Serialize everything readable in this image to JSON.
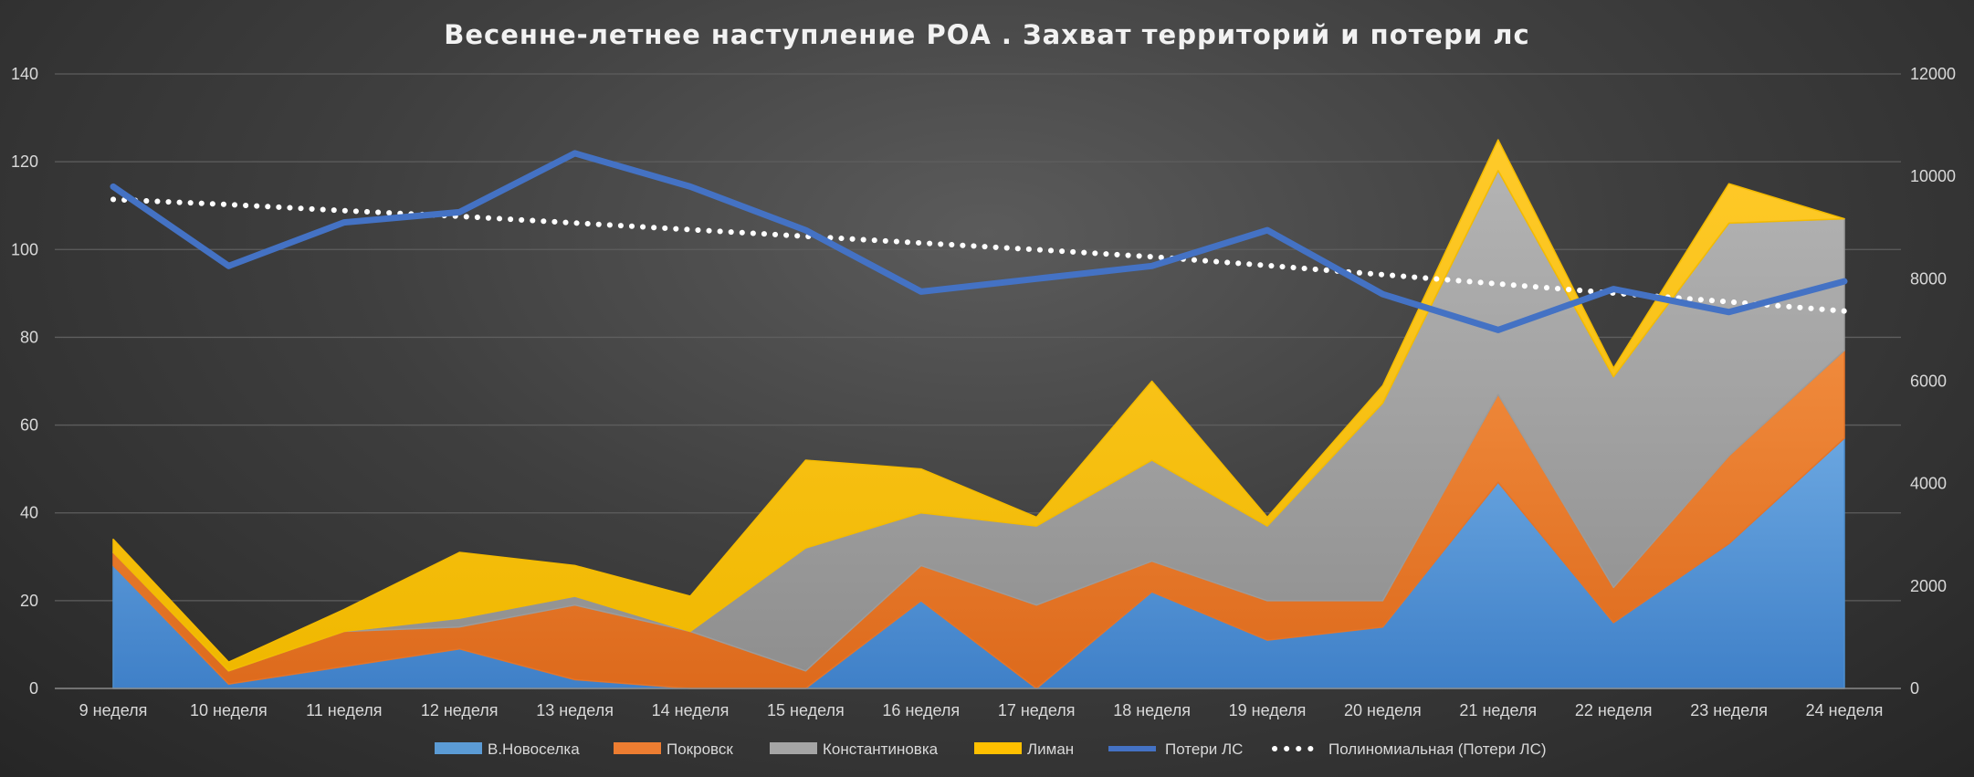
{
  "chart_data": {
    "type": "area",
    "title": "Весенне-летнее наступление РОА . Захват территорий и потери лс",
    "categories": [
      "9 неделя",
      "10 неделя",
      "11 неделя",
      "12 неделя",
      "13 неделя",
      "14 неделя",
      "15 неделя",
      "16 неделя",
      "17 неделя",
      "18 неделя",
      "19 неделя",
      "20 неделя",
      "21 неделя",
      "22 неделя",
      "23 неделя",
      "24 неделя"
    ],
    "y_left": {
      "min": 0,
      "max": 140,
      "ticks": [
        "0",
        "20",
        "40",
        "60",
        "80",
        "100",
        "120",
        "140"
      ]
    },
    "y_right": {
      "min": 0,
      "max": 12000,
      "ticks": [
        "0",
        "2000",
        "4000",
        "6000",
        "8000",
        "10000",
        "12000"
      ]
    },
    "grid": true,
    "legend_position": "bottom",
    "stacked_series": [
      {
        "name": "В.Новоселка",
        "color": "#5b9bd5",
        "values": [
          28,
          1,
          5,
          9,
          2,
          0,
          0,
          20,
          0,
          22,
          11,
          14,
          47,
          15,
          33,
          57
        ]
      },
      {
        "name": "Покровск",
        "color": "#ed7d31",
        "values": [
          3,
          3,
          8,
          5,
          17,
          13,
          4,
          8,
          19,
          7,
          9,
          6,
          20,
          8,
          20,
          20
        ]
      },
      {
        "name": "Константиновка",
        "color": "#a5a5a5",
        "values": [
          0,
          0,
          0,
          2,
          2,
          0,
          28,
          12,
          18,
          23,
          17,
          45,
          51,
          48,
          53,
          30
        ]
      },
      {
        "name": "Лиман",
        "color": "#ffc000",
        "values": [
          3,
          2,
          5,
          15,
          7,
          8,
          20,
          10,
          2,
          18,
          2,
          4,
          7,
          2,
          9,
          0
        ]
      }
    ],
    "line_series": [
      {
        "name": "Потери ЛС",
        "color": "#4472c4",
        "axis": "right",
        "values": [
          9800,
          8250,
          9100,
          9300,
          10450,
          9800,
          8950,
          7750,
          8000,
          8250,
          8950,
          7700,
          7000,
          7800,
          7350,
          7950
        ]
      }
    ],
    "trendline": {
      "name": "Полиномиальная (Потери ЛС)",
      "color": "#ffffff",
      "axis": "right",
      "values": [
        9550,
        9450,
        9330,
        9220,
        9090,
        8960,
        8830,
        8700,
        8570,
        8430,
        8260,
        8080,
        7900,
        7720,
        7550,
        7370
      ]
    }
  }
}
